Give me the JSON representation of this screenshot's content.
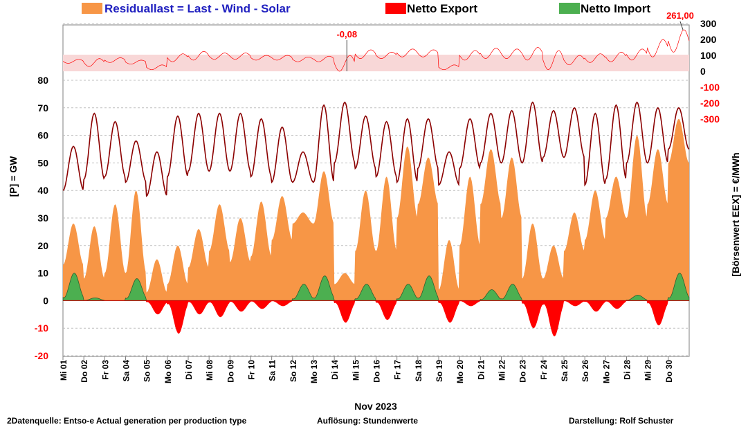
{
  "legend": {
    "residual": {
      "label": "Residuallast  =  Last - Wind - Solar",
      "color": "#f79646",
      "text_color": "#1f1fbf"
    },
    "export": {
      "label": "Netto Export",
      "color": "#ff0000"
    },
    "import": {
      "label": "Netto Import",
      "color": "#4caf50"
    }
  },
  "footer": {
    "source": "2Datenquelle: Entso-e  Actual generation per production type",
    "resolution": "Auflösung: Stundenwerte",
    "author": "Darstellung:  Rolf Schuster"
  },
  "chart_data": {
    "type": "area",
    "xlabel": "Nov 2023",
    "ylabel_left": "[P]  =  GW",
    "ylabel_right": "[Börsenwert  EEX]   =  €/MWh",
    "left_axis": {
      "ylim": [
        -20,
        80
      ],
      "ticks": [
        "80",
        "70",
        "60",
        "50",
        "40",
        "30",
        "20",
        "10",
        "0",
        "-10",
        "-20"
      ],
      "tick_values": [
        80,
        70,
        60,
        50,
        40,
        30,
        20,
        10,
        0,
        -10,
        -20
      ]
    },
    "right_axis": {
      "ticks": [
        "300",
        "200",
        "100",
        "0",
        "-100",
        "-200",
        "-300"
      ],
      "tick_values": [
        300,
        200,
        100,
        0,
        -100,
        -200,
        -300
      ],
      "range": [
        -300,
        300
      ]
    },
    "x_labels": [
      "Mi 01",
      "Do 02",
      "Fr 03",
      "Sa 04",
      "So 05",
      "Mo 06",
      "Di 07",
      "Mi 08",
      "Do 09",
      "Fr 10",
      "Sa 11",
      "So 12",
      "Mo 13",
      "Di 14",
      "Mi 15",
      "Do 16",
      "Fr 17",
      "Sa 18",
      "So 19",
      "Mo 20",
      "Di 21",
      "Mi 22",
      "Do 23",
      "Fr 24",
      "Sa 25",
      "So 26",
      "Mo 27",
      "Di 28",
      "Mi 29",
      "Do 30"
    ],
    "days": 30,
    "annotations": [
      {
        "text": "-0,08",
        "day": 13.6,
        "value": -0.08
      },
      {
        "text": "261,00",
        "day": 29.7,
        "value": 261.0
      }
    ],
    "series": [
      {
        "name": "Residuallast  =  Last - Wind - Solar",
        "unit": "GW",
        "day_peak": [
          28,
          27,
          35,
          40,
          15,
          20,
          26,
          35,
          30,
          36,
          38,
          32,
          47,
          10,
          40,
          45,
          56,
          52,
          22,
          45,
          55,
          52,
          28,
          20,
          32,
          40,
          45,
          60,
          55,
          66
        ],
        "day_trough": [
          13,
          8,
          10,
          10,
          3,
          6,
          12,
          18,
          14,
          16,
          22,
          28,
          28,
          6,
          18,
          18,
          30,
          35,
          4,
          20,
          35,
          30,
          8,
          8,
          18,
          22,
          30,
          30,
          35,
          50
        ]
      },
      {
        "name": "Netto Export / Netto Import",
        "unit": "GW",
        "day_values": [
          10,
          1,
          0,
          8,
          -5,
          -12,
          -5,
          -6,
          -4,
          -3,
          -2,
          6,
          9,
          -8,
          6,
          -7,
          6,
          9,
          -8,
          -2,
          4,
          6,
          -10,
          -13,
          -2,
          -4,
          -3,
          2,
          -9,
          10
        ]
      },
      {
        "name": "Last",
        "unit": "GW",
        "day_peak": [
          56,
          68,
          65,
          58,
          54,
          67,
          68,
          68,
          68,
          66,
          63,
          54,
          71,
          72,
          67,
          65,
          66,
          66,
          54,
          66,
          68,
          69,
          72,
          69,
          70,
          68,
          71,
          72,
          70,
          70
        ],
        "day_trough": [
          40,
          44,
          45,
          43,
          38,
          45,
          47,
          47,
          47,
          45,
          43,
          43,
          43,
          50,
          48,
          45,
          43,
          48,
          42,
          48,
          50,
          50,
          50,
          52,
          52,
          42,
          44,
          50,
          50,
          55
        ]
      },
      {
        "name": "Börsenwert EEX",
        "unit": "€/MWh",
        "day_peak": [
          75,
          80,
          85,
          70,
          40,
          110,
          125,
          115,
          115,
          100,
          100,
          90,
          95,
          100,
          135,
          120,
          140,
          135,
          40,
          130,
          145,
          140,
          150,
          130,
          100,
          110,
          120,
          140,
          200,
          261
        ],
        "day_trough": [
          50,
          30,
          55,
          45,
          10,
          60,
          70,
          75,
          75,
          70,
          70,
          60,
          60,
          -0.08,
          80,
          80,
          90,
          90,
          10,
          70,
          80,
          80,
          70,
          10,
          40,
          55,
          60,
          70,
          90,
          120
        ]
      }
    ]
  }
}
